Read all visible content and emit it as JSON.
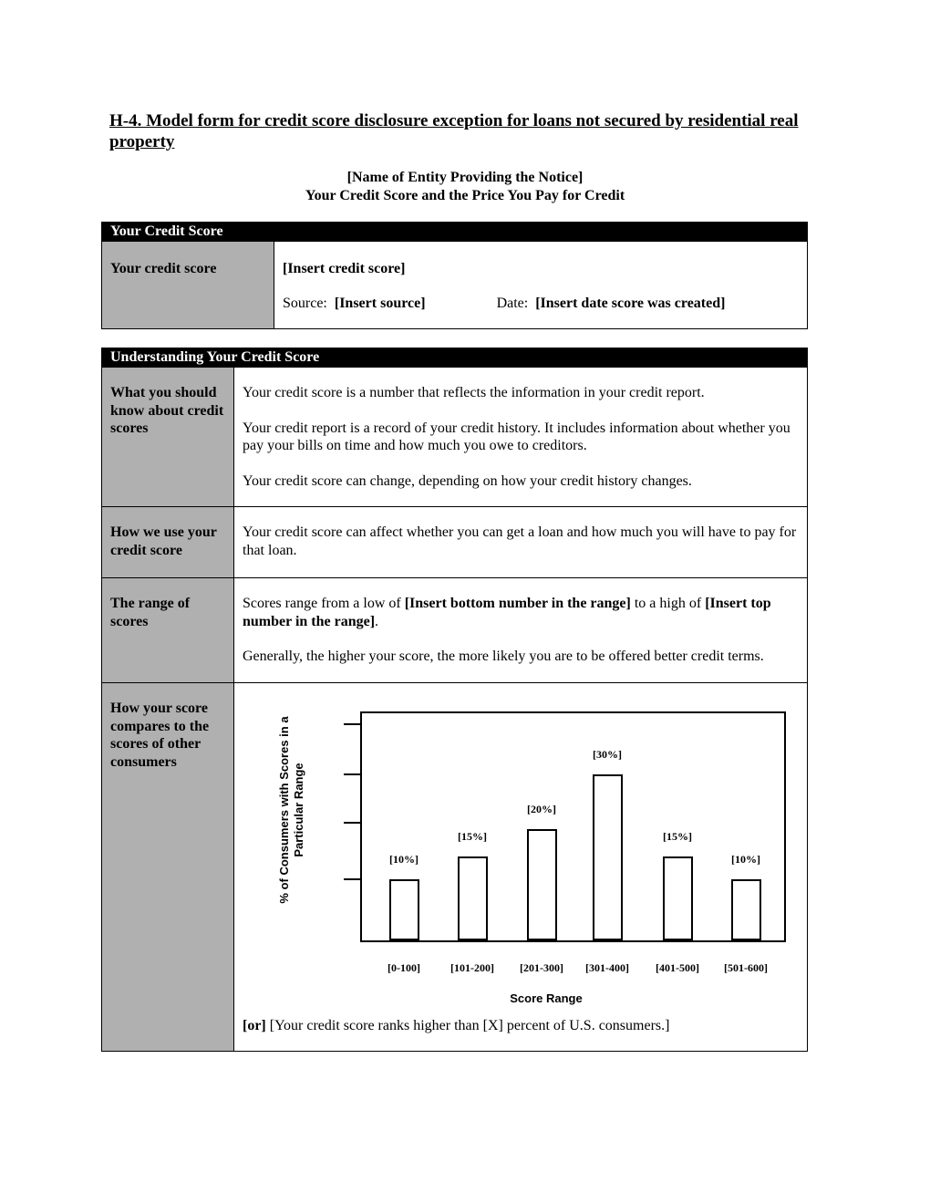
{
  "heading": "H-4.  Model form for credit score disclosure exception for loans not secured by residential real property",
  "entity": "[Name of Entity Providing the Notice]",
  "notice_title": "Your Credit Score and the Price You Pay for Credit",
  "score_table": {
    "header": "Your Credit Score",
    "label": "Your credit score",
    "score": "[Insert credit score]",
    "source_label": "Source:",
    "source": "[Insert source]",
    "date_label": "Date:",
    "date": "[Insert date score was created]"
  },
  "understanding": {
    "header": "Understanding Your Credit Score",
    "rows": [
      {
        "label": "What you should know about credit scores",
        "p1": "Your credit score is a number that reflects the information in your credit report.",
        "p2": "Your credit report is a record of your credit history.  It includes information about whether you pay your bills on time and how much you owe to creditors.",
        "p3": "Your credit score can change, depending on how your credit history changes."
      },
      {
        "label": "How we use your credit score",
        "p1": "Your credit score can affect whether you can get a loan and how much you will have to pay for that loan."
      },
      {
        "label": "The range of scores",
        "p1a": "Scores range from a low of ",
        "p1b": "[Insert bottom number in the range]",
        "p1c": " to a high of ",
        "p1d": "[Insert top number in the range]",
        "p1e": ".",
        "p2": "Generally, the higher your score, the more likely you are to be offered better credit terms."
      },
      {
        "label": "How your score compares to the scores of other consumers",
        "or": "[or]",
        "alt": " [Your credit score ranks higher than [X] percent of U.S. consumers.]"
      }
    ]
  },
  "chart_data": {
    "type": "bar",
    "categories": [
      "[0-100]",
      "[101-200]",
      "[201-300]",
      "[301-400]",
      "[401-500]",
      "[501-600]"
    ],
    "values": [
      10,
      15,
      20,
      30,
      15,
      10
    ],
    "data_labels": [
      "[10%]",
      "[15%]",
      "[20%]",
      "[30%]",
      "[15%]",
      "[10%]"
    ],
    "xlabel": "Score Range",
    "ylabel": "% of Consumers with Scores in a Particular Range",
    "ylim": [
      0,
      40
    ],
    "grid": false
  }
}
